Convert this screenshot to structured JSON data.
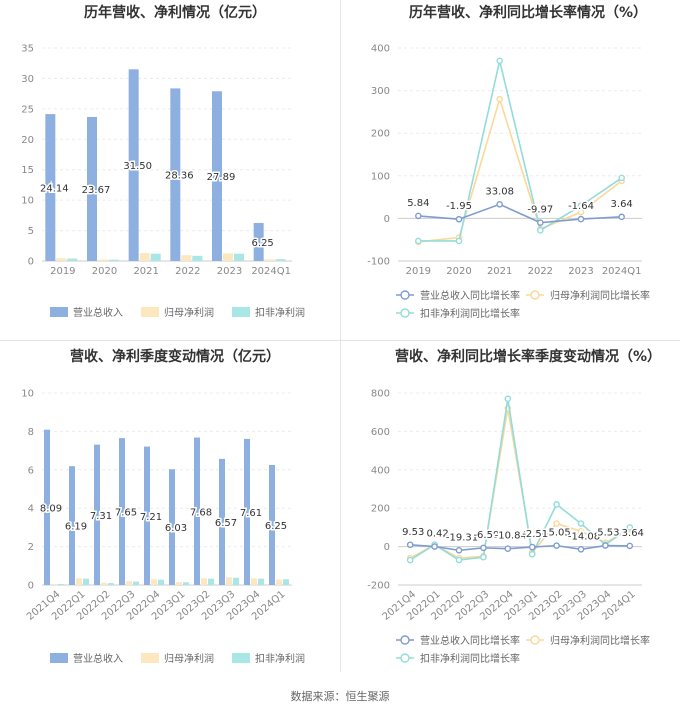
{
  "footer": {
    "source": "数据来源：恒生聚源"
  },
  "chart_data": [
    {
      "type": "bar",
      "title": "历年营收、净利情况（亿元）",
      "categories": [
        "2019",
        "2020",
        "2021",
        "2022",
        "2023",
        "2024Q1"
      ],
      "ylim": [
        0,
        35
      ],
      "yticks": [
        0,
        5,
        10,
        15,
        20,
        25,
        30,
        35
      ],
      "series": [
        {
          "name": "营业总收入",
          "color": "#8eb0e0",
          "values": [
            24.14,
            23.67,
            31.5,
            28.36,
            27.89,
            6.25
          ],
          "labels": [
            "24.14",
            "23.67",
            "31.50",
            "28.36",
            "27.89",
            "6.25"
          ]
        },
        {
          "name": "归母净利润",
          "color": "#fde7bf",
          "values": [
            0.45,
            0.25,
            1.3,
            0.95,
            1.25,
            0.28
          ]
        },
        {
          "name": "扣非净利润",
          "color": "#a9e6e6",
          "values": [
            0.4,
            0.22,
            1.2,
            0.85,
            1.2,
            0.3
          ]
        }
      ],
      "legend": "bottom"
    },
    {
      "type": "line",
      "title": "历年营收、净利同比增长率情况（%）",
      "categories": [
        "2019",
        "2020",
        "2021",
        "2022",
        "2023",
        "2024Q1"
      ],
      "ylim": [
        -100,
        400
      ],
      "yticks": [
        -100,
        0,
        100,
        200,
        300,
        400
      ],
      "series": [
        {
          "name": "营业总收入同比增长率",
          "color": "#7f9ccf",
          "values": [
            5.84,
            -1.95,
            33.08,
            -9.97,
            -1.64,
            3.64
          ],
          "labels": [
            "5.84",
            "-1.95",
            "33.08",
            "-9.97",
            "-1.64",
            "3.64"
          ]
        },
        {
          "name": "归母净利润同比增长率",
          "color": "#fbd89a",
          "values": [
            -55,
            -45,
            280,
            -25,
            15,
            88
          ]
        },
        {
          "name": "扣非净利润同比增长率",
          "color": "#92dcdc",
          "values": [
            -53,
            -53,
            370,
            -28,
            30,
            95
          ]
        }
      ],
      "legend": "bottom"
    },
    {
      "type": "bar",
      "title": "营收、净利季度变动情况（亿元）",
      "categories": [
        "2021Q4",
        "2022Q1",
        "2022Q2",
        "2022Q3",
        "2022Q4",
        "2023Q1",
        "2023Q2",
        "2023Q3",
        "2023Q4",
        "2024Q1"
      ],
      "ylim": [
        0,
        10
      ],
      "yticks": [
        0,
        2,
        4,
        6,
        8,
        10
      ],
      "series": [
        {
          "name": "营业总收入",
          "color": "#8eb0e0",
          "values": [
            8.09,
            6.19,
            7.31,
            7.65,
            7.21,
            6.03,
            7.68,
            6.57,
            7.61,
            6.25
          ],
          "labels": [
            "8.09",
            "6.19",
            "7.31",
            "7.65",
            "7.21",
            "6.03",
            "7.68",
            "6.57",
            "7.61",
            "6.25"
          ]
        },
        {
          "name": "归母净利润",
          "color": "#fde7bf",
          "values": [
            0.05,
            0.35,
            0.12,
            0.2,
            0.3,
            0.15,
            0.35,
            0.4,
            0.35,
            0.28
          ]
        },
        {
          "name": "扣非净利润",
          "color": "#a9e6e6",
          "values": [
            0.05,
            0.33,
            0.1,
            0.18,
            0.28,
            0.14,
            0.33,
            0.38,
            0.33,
            0.3
          ]
        }
      ],
      "legend": "bottom"
    },
    {
      "type": "line",
      "title": "营收、净利同比增长率季度变动情况（%）",
      "categories": [
        "2021Q4",
        "2022Q1",
        "2022Q2",
        "2022Q3",
        "2022Q4",
        "2023Q1",
        "2023Q2",
        "2023Q3",
        "2023Q4",
        "2024Q1"
      ],
      "ylim": [
        -200,
        800
      ],
      "yticks": [
        -200,
        0,
        200,
        400,
        600,
        800
      ],
      "series": [
        {
          "name": "营业总收入同比增长率",
          "color": "#7f9ccf",
          "values": [
            9.53,
            0.42,
            -19.31,
            -6.59,
            -10.84,
            -2.51,
            5.05,
            -14.08,
            5.53,
            3.64
          ],
          "labels": [
            "9.53",
            "0.42",
            "-19.31",
            "-6.59",
            "-10.84",
            "-2.51",
            "5.05",
            "-14.08",
            "5.53",
            "3.64"
          ]
        },
        {
          "name": "归母净利润同比增长率",
          "color": "#fbd89a",
          "values": [
            -60,
            10,
            -60,
            -50,
            720,
            -30,
            120,
            80,
            20,
            90
          ]
        },
        {
          "name": "扣非净利润同比增长率",
          "color": "#92dcdc",
          "values": [
            -70,
            10,
            -70,
            -55,
            770,
            -40,
            220,
            120,
            10,
            100
          ]
        }
      ],
      "legend": "bottom"
    }
  ]
}
